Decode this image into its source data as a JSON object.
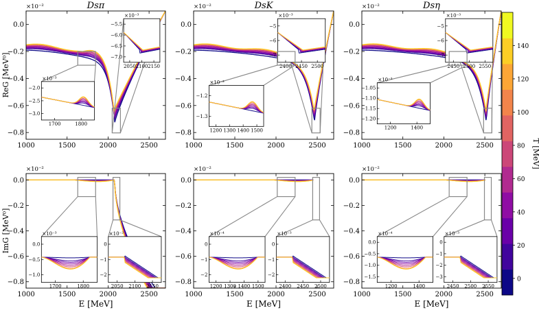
{
  "chart_data": {
    "type": "line",
    "figure_description_note": "",
    "temperature_series": [
      {
        "name": "T=0",
        "T": 0,
        "color": "#0d0887"
      },
      {
        "name": "T=40",
        "T": 40,
        "color": "#41049d"
      },
      {
        "name": "T=60",
        "T": 60,
        "color": "#6a00a8"
      },
      {
        "name": "T=80",
        "T": 80,
        "color": "#8f0da4"
      },
      {
        "name": "T=100",
        "T": 100,
        "color": "#b12a90"
      },
      {
        "name": "T=120",
        "T": 120,
        "color": "#cc4778"
      },
      {
        "name": "T=140",
        "T": 140,
        "color": "#f89540"
      },
      {
        "name": "T=150",
        "T": 150,
        "color": "#fdca26"
      }
    ],
    "colorbar": {
      "label": "T [MeV]",
      "ticks": [
        "0",
        "20",
        "40",
        "60",
        "80",
        "100",
        "120",
        "140"
      ],
      "range": [
        -10,
        160
      ],
      "bands": [
        "#0d0887",
        "#41049d",
        "#6a00a8",
        "#8f0da4",
        "#b12a90",
        "#cc4778",
        "#e16462",
        "#f2844b",
        "#fca636",
        "#fcce25",
        "#f0f921"
      ]
    },
    "panels": [
      {
        "id": "re-dspi",
        "title": "Dsπ",
        "row": "Re",
        "ylabel": "ReG [MeV⁰]",
        "exp_label": "×10⁻²",
        "xlim": [
          1000,
          2700
        ],
        "ylim": [
          -0.85,
          0.1
        ],
        "xticks": [
          "1000",
          "1500",
          "2000",
          "2500"
        ],
        "yticks": [
          "0.0",
          "−0.2",
          "−0.4",
          "−0.6",
          "−0.8"
        ],
        "threshold": 2080,
        "insets": [
          {
            "xticks": [
              "2050",
              "2100",
              "2150"
            ],
            "yticks": [
              "−5.5",
              "−6.0",
              "−6.5",
              "−7.0"
            ],
            "exp_label": "×10⁻³"
          },
          {
            "xticks": [
              "1700",
              "1800"
            ],
            "yticks": [
              "−2.0",
              "−2.5",
              "−3.0"
            ],
            "exp_label": "×10⁻³"
          }
        ]
      },
      {
        "id": "re-dsk",
        "title": "DsK",
        "row": "Re",
        "ylabel": "",
        "exp_label": "×10⁻²",
        "xlim": [
          1000,
          2700
        ],
        "ylim": [
          -0.85,
          0.1
        ],
        "xticks": [
          "1000",
          "1500",
          "2000",
          "2500"
        ],
        "yticks": [
          "0.0",
          "−0.2",
          "−0.4",
          "−0.6",
          "−0.8"
        ],
        "threshold": 2465,
        "insets": [
          {
            "xticks": [
              "2400",
              "2450",
              "2500"
            ],
            "yticks": [
              "−5",
              "−6",
              "−7"
            ],
            "exp_label": "×10⁻³"
          },
          {
            "xticks": [
              "1200",
              "1300",
              "1400",
              "1500"
            ],
            "yticks": [
              "−1.2",
              "−1.3"
            ],
            "exp_label": "×10⁻³"
          }
        ]
      },
      {
        "id": "re-dseta",
        "title": "Dsη",
        "row": "Re",
        "ylabel": "",
        "exp_label": "×10⁻²",
        "xlim": [
          1000,
          2700
        ],
        "ylim": [
          -0.85,
          0.1
        ],
        "xticks": [
          "1000",
          "1500",
          "2000",
          "2500"
        ],
        "yticks": [
          "0.0",
          "−0.2",
          "−0.4",
          "−0.6",
          "−0.8"
        ],
        "threshold": 2515,
        "insets": [
          {
            "xticks": [
              "2450",
              "2500",
              "2550"
            ],
            "yticks": [
              "−5",
              "−6",
              "−7"
            ],
            "exp_label": "×10⁻³"
          },
          {
            "xticks": [
              "1200",
              "1400"
            ],
            "yticks": [
              "−1.05",
              "−1.10",
              "−1.15",
              "−1.20"
            ],
            "exp_label": "×10⁻³"
          }
        ]
      },
      {
        "id": "im-dspi",
        "title": "",
        "row": "Im",
        "ylabel": "ImG [MeV⁰]",
        "exp_label": "×10⁻²",
        "xlim": [
          1000,
          2700
        ],
        "ylim": [
          -0.85,
          0.05
        ],
        "xticks": [
          "1000",
          "1500",
          "2000",
          "2500"
        ],
        "yticks": [
          "0.0",
          "−0.2",
          "−0.4",
          "−0.6",
          "−0.8"
        ],
        "threshold": 2080,
        "insets": [
          {
            "xticks": [
              "1700",
              "1800"
            ],
            "yticks": [
              "0.0",
              "−0.5",
              "−1.0"
            ],
            "exp_label": "×10⁻³"
          },
          {
            "xticks": [
              "2050",
              "2100",
              "2150"
            ],
            "yticks": [
              "0",
              "−1",
              "−2"
            ],
            "exp_label": "×10⁻²"
          }
        ]
      },
      {
        "id": "im-dsk",
        "title": "",
        "row": "Im",
        "ylabel": "",
        "exp_label": "×10⁻²",
        "xlim": [
          1000,
          2700
        ],
        "ylim": [
          -0.85,
          0.05
        ],
        "xticks": [
          "1000",
          "1500",
          "2000",
          "2500"
        ],
        "yticks": [
          "0.0",
          "−0.2",
          "−0.4",
          "−0.6",
          "−0.8"
        ],
        "threshold": 2465,
        "insets": [
          {
            "xticks": [
              "1200",
              "1300",
              "1400",
              "1500"
            ],
            "yticks": [
              "0",
              "−1",
              "−2"
            ],
            "exp_label": "×10⁻⁴"
          },
          {
            "xticks": [
              "2400",
              "2450",
              "2500"
            ],
            "yticks": [
              "0",
              "−1",
              "−2"
            ],
            "exp_label": "×10⁻³"
          }
        ]
      },
      {
        "id": "im-dseta",
        "title": "",
        "row": "Im",
        "ylabel": "",
        "exp_label": "×10⁻²",
        "xlim": [
          1000,
          2700
        ],
        "ylim": [
          -0.85,
          0.05
        ],
        "xticks": [
          "1000",
          "1500",
          "2000",
          "2500"
        ],
        "yticks": [
          "0.0",
          "−0.2",
          "−0.4",
          "−0.6",
          "−0.8"
        ],
        "threshold": 2515,
        "insets": [
          {
            "xticks": [
              "1200",
              "1400"
            ],
            "yticks": [
              "0.0",
              "−0.5",
              "−1.0",
              "−1.5"
            ],
            "exp_label": "×10⁻⁴"
          },
          {
            "xticks": [
              "2450",
              "2500",
              "2550"
            ],
            "yticks": [
              "0",
              "−1",
              "−2",
              "−3"
            ],
            "exp_label": "×10⁻³"
          }
        ]
      }
    ],
    "xlabel": "E [MeV]"
  }
}
